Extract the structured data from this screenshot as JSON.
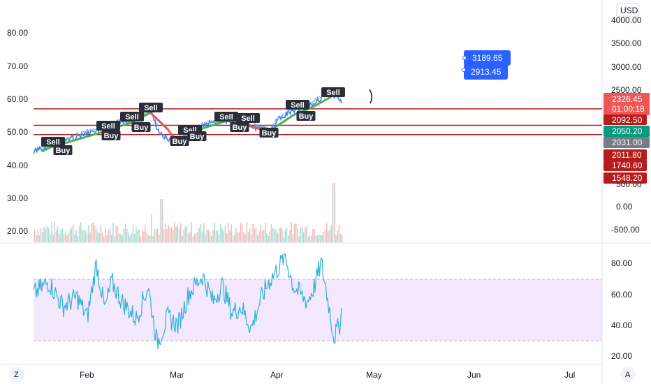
{
  "currency": "USD",
  "bottom_buttons": {
    "left": "Z",
    "right": "A"
  },
  "chart_data": {
    "type": "line",
    "x_ticks": [
      "Feb",
      "Mar",
      "Apr",
      "May",
      "Jun",
      "Jul"
    ],
    "main_left_axis": {
      "ticks": [
        "80.00",
        "70.00",
        "60.00",
        "50.00",
        "40.00",
        "30.00",
        "20.00"
      ],
      "values": [
        80,
        70,
        60,
        50,
        40,
        30,
        20
      ]
    },
    "main_right_axis": {
      "ticks": [
        "4000.00",
        "3500.00",
        "3000.00",
        "2500.00",
        "500.00",
        "0.00",
        "-500.00"
      ]
    },
    "rsi_axis": {
      "ticks": [
        "80.00",
        "60.00",
        "40.00",
        "20.00"
      ],
      "values": [
        80,
        60,
        40,
        20
      ],
      "band": [
        30,
        70
      ]
    },
    "price_labels": [
      {
        "text": "2326.45",
        "sub": "01:00:18",
        "color": "#f05656"
      },
      {
        "text": "2092.50",
        "color": "#b71c1c"
      },
      {
        "text": "2050.20",
        "color": "#089981"
      },
      {
        "text": "2031.00",
        "color": "#787b86"
      },
      {
        "text": "2011.80",
        "color": "#b71c1c"
      },
      {
        "text": "1740.60",
        "color": "#b71c1c"
      },
      {
        "text": "1548.20",
        "color": "#b71c1c"
      }
    ],
    "floating_labels": [
      "3189.65",
      "2913.45"
    ],
    "horizontal_levels": [
      57,
      52,
      49.2
    ],
    "signals": [
      {
        "label": "Sell",
        "x": 76,
        "y": 203
      },
      {
        "label": "Buy",
        "x": 90,
        "y": 215
      },
      {
        "label": "Sell",
        "x": 155,
        "y": 180
      },
      {
        "label": "Buy",
        "x": 159,
        "y": 194
      },
      {
        "label": "Sell",
        "x": 189,
        "y": 167
      },
      {
        "label": "Buy",
        "x": 202,
        "y": 182
      },
      {
        "label": "Sell",
        "x": 216,
        "y": 154
      },
      {
        "label": "Buy",
        "x": 257,
        "y": 202
      },
      {
        "label": "Sell",
        "x": 272,
        "y": 186
      },
      {
        "label": "Buy",
        "x": 282,
        "y": 195
      },
      {
        "label": "Sell",
        "x": 324,
        "y": 167
      },
      {
        "label": "Buy",
        "x": 343,
        "y": 182
      },
      {
        "label": "Sell",
        "x": 355,
        "y": 169
      },
      {
        "label": "Buy",
        "x": 385,
        "y": 190
      },
      {
        "label": "Sell",
        "x": 426,
        "y": 150
      },
      {
        "label": "Buy",
        "x": 438,
        "y": 166
      },
      {
        "label": "Sell",
        "x": 477,
        "y": 132
      }
    ]
  }
}
